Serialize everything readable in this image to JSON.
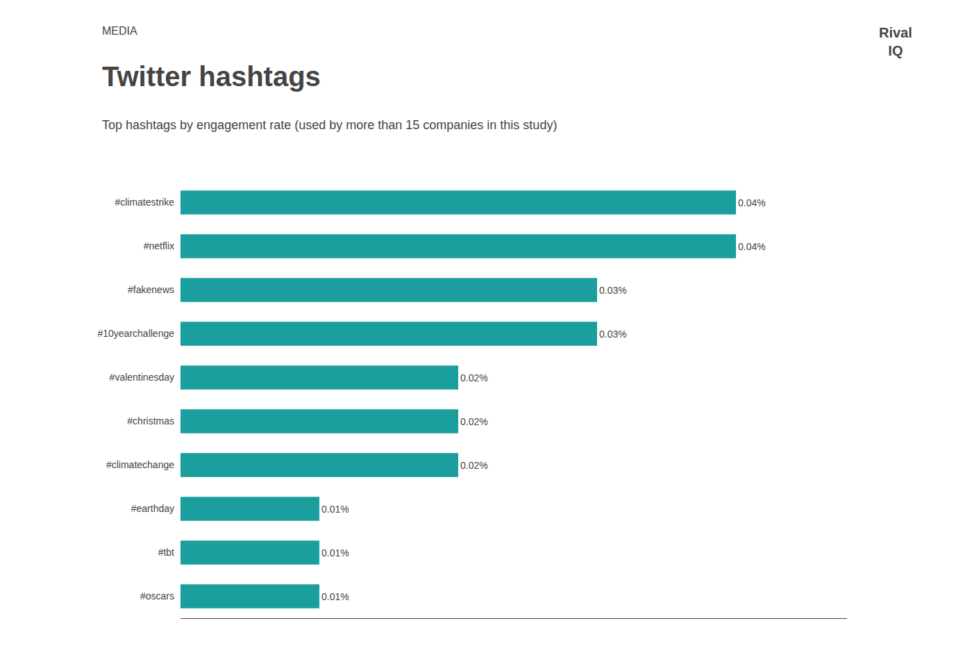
{
  "chart_data": {
    "type": "bar",
    "orientation": "horizontal",
    "title": "Twitter hashtags",
    "subtitle": "Top hashtags by engagement rate (used by more than 15 companies in this study)",
    "annotations": [
      "MEDIA",
      "Rival",
      "IQ"
    ],
    "categories": [
      "#climatestrike",
      "#netflix",
      "#fakenews",
      "#10yearchallenge",
      "#valentinesday",
      "#christmas",
      "#climatechange",
      "#earthday",
      "#tbt",
      "#oscars"
    ],
    "values": [
      0.0004,
      0.0004,
      0.0003,
      0.0003,
      0.0002,
      0.0002,
      0.0002,
      0.0001,
      0.0001,
      0.0001
    ],
    "value_labels": [
      "0.04%",
      "0.04%",
      "0.03%",
      "0.03%",
      "0.02%",
      "0.02%",
      "0.02%",
      "0.01%",
      "0.01%",
      "0.01%"
    ],
    "color": "#1A9E9E",
    "xlim": [
      0,
      0.00048
    ],
    "xticks": [],
    "grid": false,
    "data_labels": true,
    "tick_labels": "y"
  }
}
